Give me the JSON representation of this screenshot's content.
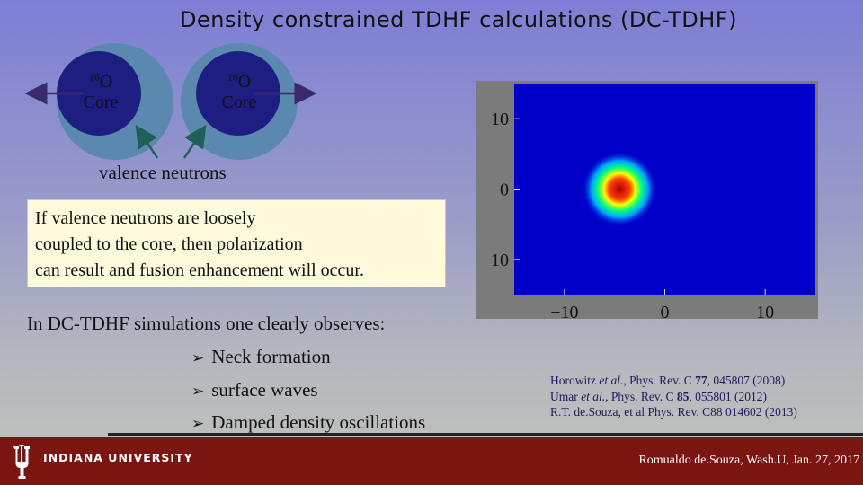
{
  "title": "Density constrained TDHF calculations (DC-TDHF)",
  "diagram": {
    "left": {
      "mass": "16",
      "element": "O",
      "label": "Core"
    },
    "right": {
      "mass": "16",
      "element": "O",
      "label": "Core"
    },
    "valence_label": "valence neutrons",
    "colors": {
      "outer": "#5b88ae",
      "inner": "#1e1e82",
      "arrow": "#3a2a6a",
      "pointer": "#1f5f5a"
    }
  },
  "callout": {
    "lines": [
      "If valence neutrons are loosely",
      "coupled to the core, then polarization",
      "can result and fusion enhancement will occur."
    ]
  },
  "simulations": {
    "heading": "In DC-TDHF simulations one clearly observes:",
    "bullets": [
      "Neck formation",
      "surface waves",
      "Damped density oscillations"
    ]
  },
  "chart_data": {
    "type": "heatmap",
    "title": "",
    "xlabel": "",
    "ylabel": "",
    "xlim": [
      -15,
      15
    ],
    "ylim": [
      -15,
      15
    ],
    "xticks": [
      "−10",
      "0",
      "10"
    ],
    "yticks": [
      "10",
      "0",
      "−10"
    ],
    "features": [
      {
        "shape": "density-blob",
        "center_x": -4.5,
        "center_y": 0
      }
    ],
    "colormap": [
      "#0000c8",
      "#00a0ff",
      "#00ff80",
      "#ffff00",
      "#ff4000",
      "#b00000"
    ]
  },
  "references": [
    {
      "pre": "Horowitz ",
      "it": "et al.,",
      "post": " Phys. Rev. C ",
      "bold": "77",
      "end": ", 045807 (2008)"
    },
    {
      "pre": "Umar ",
      "it": "et al.,",
      "post": " Phys. Rev. C ",
      "bold": "85",
      "end": ", 055801 (2012)"
    },
    {
      "pre": "R.T. de.Souza, et al Phys. Rev. C88 014602 (2013)",
      "it": "",
      "post": "",
      "bold": "",
      "end": ""
    }
  ],
  "footer": {
    "institution": "INDIANA UNIVERSITY",
    "credit": "Romualdo de.Souza, Wash.U, Jan. 27, 2017",
    "color": "#7a1512"
  }
}
